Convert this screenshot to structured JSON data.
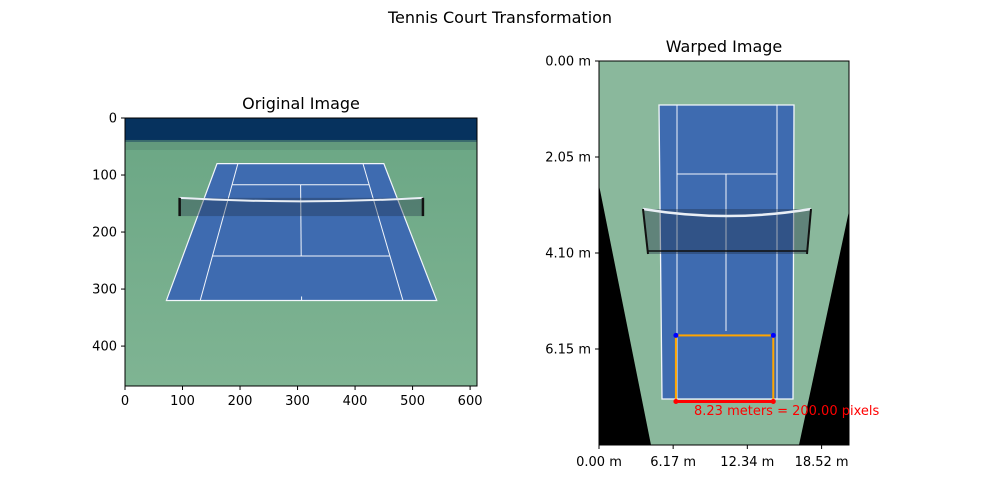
{
  "figure": {
    "suptitle": "Tennis Court Transformation"
  },
  "colors": {
    "sky": "#06325e",
    "ground": "#79af8e",
    "court": "#3e6bb0",
    "court_dark": "#35609f",
    "line": "#f2f6fb",
    "annotation": "#ff0000",
    "rect_outline": "#ffa500",
    "corner_top": "#0000ff",
    "corner_bottom": "#ff0000"
  },
  "chart_data": [
    {
      "type": "image",
      "title": "Original Image",
      "xlim": [
        0,
        612
      ],
      "ylim": [
        470,
        0
      ],
      "xticks": [
        0,
        100,
        200,
        300,
        400,
        500,
        600
      ],
      "yticks": [
        0,
        100,
        200,
        300,
        400
      ],
      "xtick_labels": [
        "0",
        "100",
        "200",
        "300",
        "400",
        "500",
        "600"
      ],
      "ytick_labels": [
        "0",
        "100",
        "200",
        "300",
        "400"
      ],
      "scene": {
        "sky_bottom": 42,
        "court_corners": [
          [
            160,
            80
          ],
          [
            450,
            80
          ],
          [
            542,
            320
          ],
          [
            72,
            320
          ]
        ],
        "net_y": [
          140,
          172
        ],
        "net_x": [
          95,
          518
        ]
      }
    },
    {
      "type": "image",
      "title": "Warped Image",
      "xlim": [
        0,
        20.8
      ],
      "ylim": [
        8.2,
        0
      ],
      "xticks": [
        0,
        6.17,
        12.34,
        18.52
      ],
      "yticks": [
        0,
        2.05,
        4.1,
        6.15
      ],
      "xtick_labels": [
        "0.00 m",
        "6.17 m",
        "12.34 m",
        "18.52 m"
      ],
      "ytick_labels": [
        "0.00 m",
        "2.05 m",
        "4.10 m",
        "6.15 m"
      ],
      "annotation": {
        "text": "8.23 meters = 200.00 pixels",
        "reference_meters": 8.23,
        "reference_pixels": 200.0
      },
      "reference_rect": {
        "x": [
          6.4,
          14.5
        ],
        "y": [
          5.86,
          7.27
        ]
      }
    }
  ]
}
